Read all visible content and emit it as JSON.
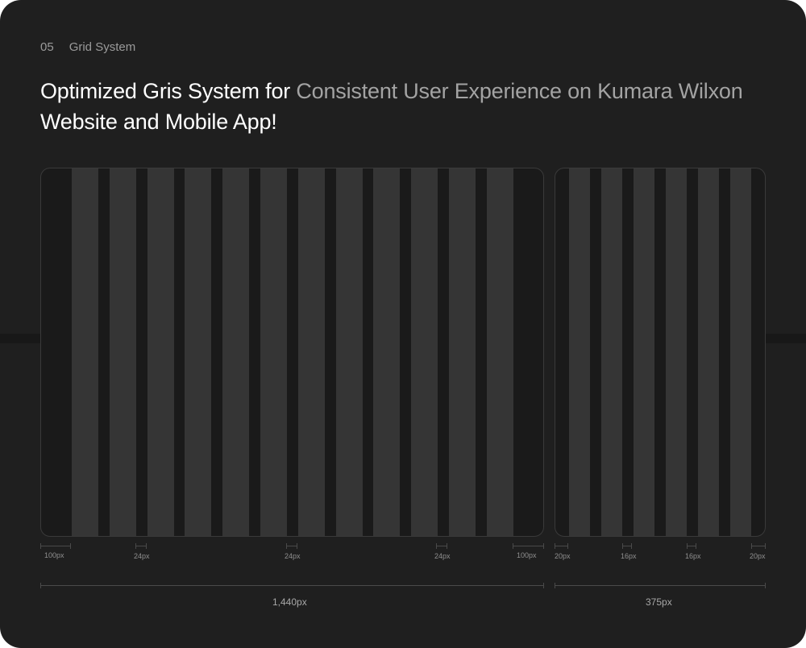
{
  "section": {
    "number": "05",
    "title": "Grid System"
  },
  "headline": {
    "part1": "Optimized Gris System for ",
    "part2": "Consistent User Experience on Kumara Wilxon",
    "part3": " Website and Mobile App!"
  },
  "desktop": {
    "columns": 12,
    "margin_label": "100px",
    "gutter_label": "24px",
    "width_label": "1,440px"
  },
  "mobile": {
    "columns": 6,
    "margin_label": "20px",
    "gutter_label": "16px",
    "width_label": "375px"
  },
  "colors": {
    "background": "#1f1f1f",
    "column": "#353535",
    "frame": "#1a1a1a",
    "accent_muted": "#a3a3a3"
  }
}
